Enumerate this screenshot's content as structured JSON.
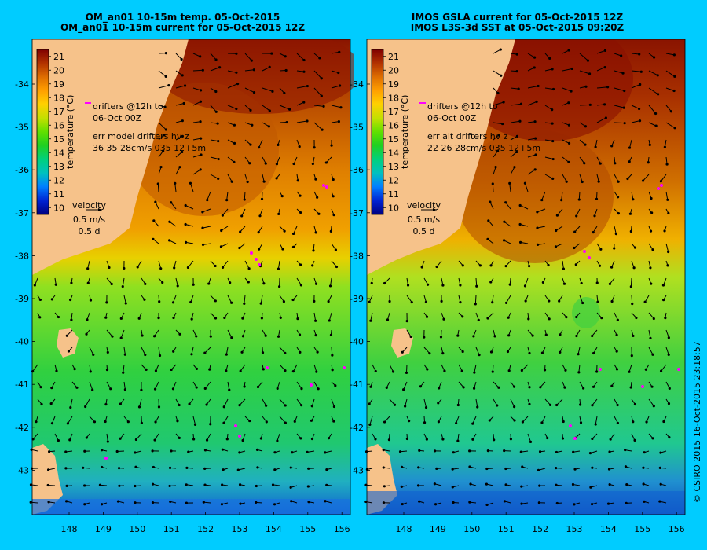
{
  "panels": [
    {
      "title_line1": "OM_an01 10-15m temp. 05-Oct-2015",
      "title_line2": "OM_an01 10-15m current for 05-Oct-2015 12Z",
      "legend": {
        "drifters_line1": "drifters @12h to",
        "drifters_line2": "06-Oct 00Z",
        "err_line1": "err model drifters hv z",
        "err_line2": "36 35 28cm/s 035 12+5m"
      },
      "velocity": {
        "title": "velocity",
        "speed": "0.5 m/s",
        "duration": "0.5 d"
      }
    },
    {
      "title_line1": "IMOS GSLA current for 05-Oct-2015 12Z",
      "title_line2": "IMOS L3S-3d SST at 05-Oct-2015 09:20Z",
      "legend": {
        "drifters_line1": "drifters @12h to",
        "drifters_line2": "06-Oct 00Z",
        "err_line1": "err alt drifters hv z",
        "err_line2": "22 26 28cm/s 035 12+5m"
      },
      "velocity": {
        "title": "velocity",
        "speed": "0.5 m/s",
        "duration": "0.5 d"
      }
    }
  ],
  "colorbar": {
    "label": "temperature (°C)",
    "ticks": [
      "21",
      "20",
      "19",
      "18",
      "17",
      "16",
      "15",
      "14",
      "13",
      "12",
      "11",
      "10"
    ],
    "min": 9.5,
    "max": 21.5
  },
  "axes": {
    "lat_labels": [
      "-34",
      "-35",
      "-36",
      "-37",
      "-38",
      "-39",
      "-40",
      "-41",
      "-42",
      "-43"
    ],
    "lon_labels": [
      "148",
      "149",
      "150",
      "151",
      "152",
      "153",
      "154",
      "155",
      "156"
    ]
  },
  "copyright": "© CSIRO 2015   16-Oct-2015 23:18:57",
  "colors": {
    "background": "#00ccff",
    "land": "#f6c28a",
    "warm": "#a83a00",
    "mid": "#f0a000",
    "cool": "#30d040",
    "cold": "#1060d0",
    "drifter": "#ff00ff"
  }
}
